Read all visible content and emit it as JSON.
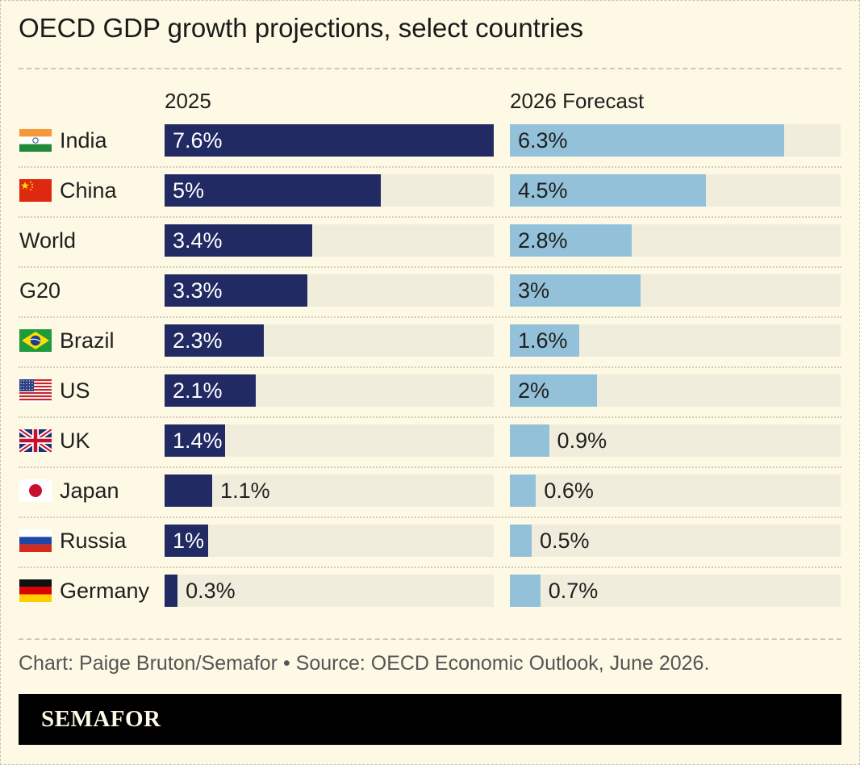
{
  "title": "OECD GDP growth projections, select countries",
  "columns": {
    "c2025": "2025",
    "c2026": "2026 Forecast"
  },
  "colors": {
    "series_2025": "#212a63",
    "series_2026": "#93c1d9",
    "track": "#f1eddc",
    "background": "#fdf9e5"
  },
  "chart_data": {
    "type": "bar",
    "orientation": "horizontal",
    "title": "OECD GDP growth projections, select countries",
    "categories": [
      "India",
      "China",
      "World",
      "G20",
      "Brazil",
      "US",
      "UK",
      "Japan",
      "Russia",
      "Germany"
    ],
    "flags": [
      "india-flag-icon",
      "china-flag-icon",
      "",
      "",
      "brazil-flag-icon",
      "us-flag-icon",
      "uk-flag-icon",
      "japan-flag-icon",
      "russia-flag-icon",
      "germany-flag-icon"
    ],
    "series": [
      {
        "name": "2025",
        "values": [
          7.6,
          5.0,
          3.4,
          3.3,
          2.3,
          2.1,
          1.4,
          1.1,
          1.0,
          0.3
        ],
        "labels": [
          "7.6%",
          "5%",
          "3.4%",
          "3.3%",
          "2.3%",
          "2.1%",
          "1.4%",
          "1.1%",
          "1%",
          "0.3%"
        ]
      },
      {
        "name": "2026 Forecast",
        "values": [
          6.3,
          4.5,
          2.8,
          3.0,
          1.6,
          2.0,
          0.9,
          0.6,
          0.5,
          0.7
        ],
        "labels": [
          "6.3%",
          "4.5%",
          "2.8%",
          "3%",
          "1.6%",
          "2%",
          "0.9%",
          "0.6%",
          "0.5%",
          "0.7%"
        ]
      }
    ],
    "xlim_2025": [
      0,
      7.6
    ],
    "xlim_2026": [
      0,
      7.6
    ],
    "grid": false,
    "legend": "column-headers"
  },
  "footnote": "Chart: Paige Bruton/Semafor • Source: OECD Economic Outlook, June 2026.",
  "brand": "SEMAFOR"
}
